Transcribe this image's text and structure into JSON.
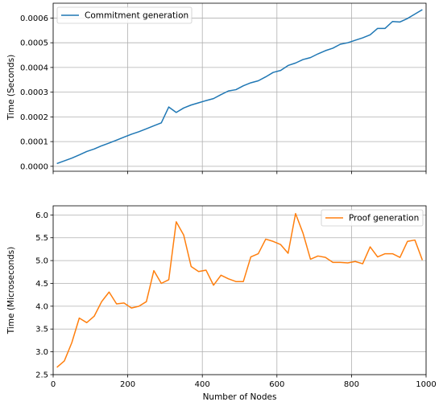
{
  "chart_data": [
    {
      "type": "line",
      "grid": true,
      "legend_position": "top-left",
      "xlabel": "",
      "ylabel": "Time (Seconds)",
      "xlim": [
        0,
        1000
      ],
      "ylim": [
        -2e-05,
        0.00066
      ],
      "xticks": [
        0,
        200,
        400,
        600,
        800,
        1000
      ],
      "xtick_labels": [],
      "yticks": [
        0.0,
        0.0001,
        0.0002,
        0.0003,
        0.0004,
        0.0005,
        0.0006
      ],
      "ytick_labels": [
        "0.0000",
        "0.0001",
        "0.0002",
        "0.0003",
        "0.0004",
        "0.0005",
        "0.0006"
      ],
      "series": [
        {
          "name": "Commitment generation",
          "color": "#1f77b4",
          "x": [
            10,
            30,
            50,
            70,
            90,
            110,
            130,
            150,
            170,
            190,
            210,
            230,
            250,
            270,
            290,
            310,
            330,
            350,
            370,
            390,
            410,
            430,
            450,
            470,
            490,
            510,
            530,
            550,
            570,
            590,
            610,
            630,
            650,
            670,
            690,
            710,
            730,
            750,
            770,
            790,
            810,
            830,
            850,
            870,
            890,
            910,
            930,
            950,
            970,
            990
          ],
          "y": [
            1.1e-05,
            2.2e-05,
            3.3e-05,
            4.6e-05,
            6e-05,
            7e-05,
            8.3e-05,
            9.4e-05,
            0.000106,
            0.000118,
            0.00013,
            0.00014,
            0.000152,
            0.000164,
            0.000176,
            0.00024,
            0.000218,
            0.000236,
            0.000248,
            0.000257,
            0.000266,
            0.000274,
            0.00029,
            0.000305,
            0.00031,
            0.000326,
            0.000338,
            0.000346,
            0.000362,
            0.00038,
            0.000388,
            0.000408,
            0.000418,
            0.000432,
            0.00044,
            0.000455,
            0.000468,
            0.000478,
            0.000494,
            0.0005,
            0.00051,
            0.00052,
            0.000532,
            0.000558,
            0.000558,
            0.000586,
            0.000584,
            0.000598,
            0.000616,
            0.000634
          ]
        }
      ]
    },
    {
      "type": "line",
      "grid": true,
      "legend_position": "top-right",
      "xlabel": "Number of Nodes",
      "ylabel": "Time (Microseconds)",
      "xlim": [
        0,
        1000
      ],
      "ylim": [
        2.5,
        6.2
      ],
      "xticks": [
        0,
        200,
        400,
        600,
        800,
        1000
      ],
      "xtick_labels": [
        "0",
        "200",
        "400",
        "600",
        "800",
        "1000"
      ],
      "yticks": [
        2.5,
        3.0,
        3.5,
        4.0,
        4.5,
        5.0,
        5.5,
        6.0
      ],
      "ytick_labels": [
        "2.5",
        "3.0",
        "3.5",
        "4.0",
        "4.5",
        "5.0",
        "5.5",
        "6.0"
      ],
      "series": [
        {
          "name": "Proof generation",
          "color": "#ff7f0e",
          "x": [
            10,
            30,
            50,
            70,
            90,
            110,
            130,
            150,
            170,
            190,
            210,
            230,
            250,
            270,
            290,
            310,
            330,
            350,
            370,
            390,
            410,
            430,
            450,
            470,
            490,
            510,
            530,
            550,
            570,
            590,
            610,
            630,
            650,
            670,
            690,
            710,
            730,
            750,
            770,
            790,
            810,
            830,
            850,
            870,
            890,
            910,
            930,
            950,
            970,
            990
          ],
          "y": [
            2.66,
            2.8,
            3.2,
            3.74,
            3.64,
            3.78,
            4.1,
            4.31,
            4.05,
            4.07,
            3.96,
            4.0,
            4.1,
            4.78,
            4.5,
            4.58,
            5.85,
            5.56,
            4.87,
            4.76,
            4.79,
            4.46,
            4.68,
            4.6,
            4.54,
            4.54,
            5.08,
            5.15,
            5.47,
            5.42,
            5.35,
            5.16,
            6.03,
            5.6,
            5.03,
            5.1,
            5.07,
            4.96,
            4.96,
            4.95,
            4.98,
            4.93,
            5.3,
            5.08,
            5.15,
            5.15,
            5.07,
            5.42,
            5.45,
            5.01
          ]
        }
      ]
    }
  ]
}
